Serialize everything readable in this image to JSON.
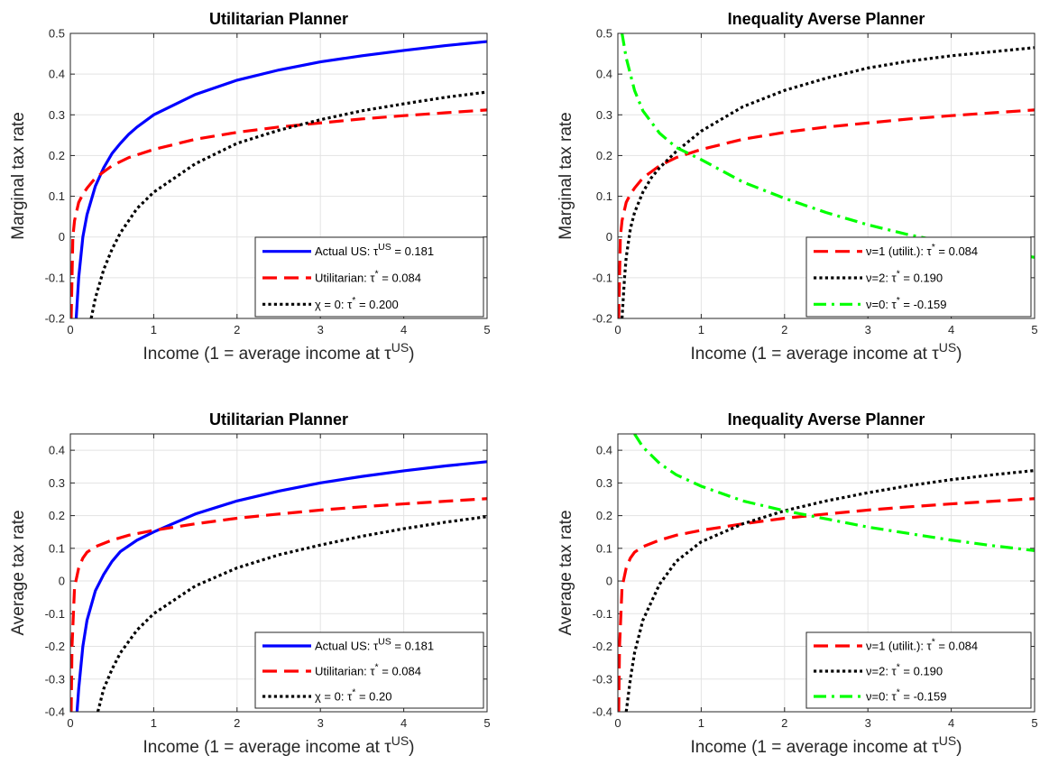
{
  "colors": {
    "blue": "#0000ff",
    "red": "#ff0000",
    "black": "#000000",
    "green": "#00ff00",
    "grid": "#e3e3e3",
    "axis": "#262626"
  },
  "chart_data": [
    {
      "type": "line",
      "title": "Utilitarian Planner",
      "xlabel": "Income (1 = average income at τ",
      "xlabel_sup": "US",
      "xlabel_end": ")",
      "ylabel": "Marginal tax rate",
      "xlim": [
        0,
        5
      ],
      "ylim": [
        -0.2,
        0.5
      ],
      "xticks": [
        "0",
        "1",
        "2",
        "3",
        "4",
        "5"
      ],
      "yticks": [
        "-0.2",
        "-0.1",
        "0",
        "0.1",
        "0.2",
        "0.3",
        "0.4",
        "0.5"
      ],
      "grid": true,
      "legend_position": "bottom-right",
      "series": [
        {
          "name": "Actual US: τ^US = 0.181",
          "legend_pre": "Actual US: τ",
          "legend_sup": "US",
          "legend_post": " = 0.181",
          "style": "solid",
          "color": "blue",
          "x": [
            0.07,
            0.1,
            0.15,
            0.2,
            0.3,
            0.4,
            0.5,
            0.6,
            0.7,
            0.8,
            1.0,
            1.5,
            2.0,
            2.5,
            3.0,
            3.5,
            4.0,
            4.5,
            5.0
          ],
          "y": [
            -0.2,
            -0.1,
            0.0,
            0.055,
            0.125,
            0.17,
            0.205,
            0.23,
            0.252,
            0.27,
            0.3,
            0.35,
            0.385,
            0.41,
            0.43,
            0.445,
            0.458,
            0.47,
            0.48
          ]
        },
        {
          "name": "Utilitarian: τ* = 0.084",
          "legend_pre": "Utilitarian: τ",
          "legend_sup": "*",
          "legend_post": " = 0.084",
          "style": "dashed",
          "color": "red",
          "x": [
            0.01,
            0.03,
            0.05,
            0.1,
            0.15,
            0.2,
            0.3,
            0.4,
            0.5,
            0.7,
            1.0,
            1.5,
            2.0,
            2.5,
            3.0,
            3.5,
            4.0,
            4.5,
            5.0
          ],
          "y": [
            -0.2,
            0.0,
            0.04,
            0.085,
            0.105,
            0.12,
            0.145,
            0.16,
            0.175,
            0.195,
            0.215,
            0.24,
            0.257,
            0.27,
            0.28,
            0.29,
            0.298,
            0.305,
            0.312
          ]
        },
        {
          "name": "χ = 0: τ* = 0.200",
          "legend_pre": "χ = 0: τ",
          "legend_sup": "*",
          "legend_post": " = 0.200",
          "style": "dotted",
          "color": "black",
          "x": [
            0.25,
            0.3,
            0.4,
            0.5,
            0.6,
            0.8,
            1.0,
            1.5,
            2.0,
            2.5,
            3.0,
            3.5,
            4.0,
            4.5,
            5.0
          ],
          "y": [
            -0.2,
            -0.15,
            -0.08,
            -0.03,
            0.01,
            0.07,
            0.11,
            0.18,
            0.23,
            0.262,
            0.288,
            0.31,
            0.327,
            0.343,
            0.356
          ]
        }
      ]
    },
    {
      "type": "line",
      "title": "Inequality Averse Planner",
      "xlabel": "Income (1 = average income at τ",
      "xlabel_sup": "US",
      "xlabel_end": ")",
      "ylabel": "Marginal tax rate",
      "xlim": [
        0,
        5
      ],
      "ylim": [
        -0.2,
        0.5
      ],
      "xticks": [
        "0",
        "1",
        "2",
        "3",
        "4",
        "5"
      ],
      "yticks": [
        "-0.2",
        "-0.1",
        "0",
        "0.1",
        "0.2",
        "0.3",
        "0.4",
        "0.5"
      ],
      "grid": true,
      "legend_position": "bottom-right",
      "series": [
        {
          "name": "ν=1 (utilit.): τ* = 0.084",
          "legend_pre": "ν=1 (utilit.): τ",
          "legend_sup": "*",
          "legend_post": " = 0.084",
          "style": "dashed",
          "color": "red",
          "x": [
            0.01,
            0.03,
            0.05,
            0.1,
            0.15,
            0.2,
            0.3,
            0.4,
            0.5,
            0.7,
            1.0,
            1.5,
            2.0,
            2.5,
            3.0,
            3.5,
            4.0,
            4.5,
            5.0
          ],
          "y": [
            -0.2,
            0.0,
            0.04,
            0.085,
            0.105,
            0.12,
            0.145,
            0.16,
            0.175,
            0.195,
            0.215,
            0.24,
            0.257,
            0.27,
            0.28,
            0.29,
            0.298,
            0.305,
            0.312
          ]
        },
        {
          "name": "ν=2: τ* = 0.190",
          "legend_pre": "ν=2: τ",
          "legend_sup": "*",
          "legend_post": " = 0.190",
          "style": "dotted",
          "color": "black",
          "x": [
            0.05,
            0.08,
            0.1,
            0.15,
            0.2,
            0.3,
            0.4,
            0.5,
            0.7,
            1.0,
            1.5,
            2.0,
            2.5,
            3.0,
            3.5,
            4.0,
            4.5,
            5.0
          ],
          "y": [
            -0.2,
            -0.1,
            -0.05,
            0.02,
            0.06,
            0.11,
            0.145,
            0.17,
            0.21,
            0.26,
            0.32,
            0.36,
            0.39,
            0.415,
            0.432,
            0.445,
            0.455,
            0.465
          ]
        },
        {
          "name": "ν=0: τ* = -0.159",
          "legend_pre": "ν=0: τ",
          "legend_sup": "*",
          "legend_post": " = -0.159",
          "style": "dashdot",
          "color": "green",
          "x": [
            0.05,
            0.1,
            0.2,
            0.3,
            0.5,
            0.7,
            1.0,
            1.5,
            2.0,
            2.5,
            3.0,
            3.5,
            4.0,
            4.5,
            5.0
          ],
          "y": [
            0.5,
            0.44,
            0.36,
            0.31,
            0.255,
            0.22,
            0.19,
            0.135,
            0.095,
            0.06,
            0.03,
            0.005,
            -0.015,
            -0.033,
            -0.05
          ]
        }
      ]
    },
    {
      "type": "line",
      "title": "Utilitarian Planner",
      "xlabel": "Income (1 = average income at τ",
      "xlabel_sup": "US",
      "xlabel_end": ")",
      "ylabel": "Average tax rate",
      "xlim": [
        0,
        5
      ],
      "ylim": [
        -0.4,
        0.45
      ],
      "xticks": [
        "0",
        "1",
        "2",
        "3",
        "4",
        "5"
      ],
      "yticks": [
        "-0.4",
        "-0.3",
        "-0.2",
        "-0.1",
        "0",
        "0.1",
        "0.2",
        "0.3",
        "0.4"
      ],
      "grid": true,
      "legend_position": "bottom-right",
      "series": [
        {
          "name": "Actual US: τ^US = 0.181",
          "legend_pre": "Actual US: τ",
          "legend_sup": "US",
          "legend_post": " = 0.181",
          "style": "solid",
          "color": "blue",
          "x": [
            0.08,
            0.1,
            0.15,
            0.2,
            0.3,
            0.4,
            0.5,
            0.6,
            0.8,
            1.0,
            1.5,
            2.0,
            2.5,
            3.0,
            3.5,
            4.0,
            4.5,
            5.0
          ],
          "y": [
            -0.4,
            -0.33,
            -0.2,
            -0.12,
            -0.03,
            0.02,
            0.06,
            0.09,
            0.125,
            0.15,
            0.205,
            0.245,
            0.275,
            0.3,
            0.32,
            0.337,
            0.352,
            0.365
          ]
        },
        {
          "name": "Utilitarian: τ* = 0.084",
          "legend_pre": "Utilitarian: τ",
          "legend_sup": "*",
          "legend_post": " = 0.084",
          "style": "dashed",
          "color": "red",
          "x": [
            0.01,
            0.02,
            0.05,
            0.1,
            0.15,
            0.2,
            0.3,
            0.5,
            0.7,
            1.0,
            1.5,
            2.0,
            2.5,
            3.0,
            3.5,
            4.0,
            4.5,
            5.0
          ],
          "y": [
            -0.4,
            -0.2,
            -0.02,
            0.04,
            0.07,
            0.088,
            0.105,
            0.125,
            0.14,
            0.155,
            0.175,
            0.192,
            0.205,
            0.217,
            0.227,
            0.236,
            0.244,
            0.252
          ]
        },
        {
          "name": "χ = 0: τ* = 0.20",
          "legend_pre": "χ = 0: τ",
          "legend_sup": "*",
          "legend_post": " = 0.20",
          "style": "dotted",
          "color": "black",
          "x": [
            0.33,
            0.4,
            0.5,
            0.6,
            0.8,
            1.0,
            1.5,
            2.0,
            2.5,
            3.0,
            3.5,
            4.0,
            4.5,
            5.0
          ],
          "y": [
            -0.4,
            -0.33,
            -0.27,
            -0.22,
            -0.15,
            -0.1,
            -0.015,
            0.04,
            0.08,
            0.11,
            0.137,
            0.16,
            0.18,
            0.197
          ]
        }
      ]
    },
    {
      "type": "line",
      "title": "Inequality Averse Planner",
      "xlabel": "Income (1 = average income at τ",
      "xlabel_sup": "US",
      "xlabel_end": ")",
      "ylabel": "Average tax rate",
      "xlim": [
        0,
        5
      ],
      "ylim": [
        -0.4,
        0.45
      ],
      "xticks": [
        "0",
        "1",
        "2",
        "3",
        "4",
        "5"
      ],
      "yticks": [
        "-0.4",
        "-0.3",
        "-0.2",
        "-0.1",
        "0",
        "0.1",
        "0.2",
        "0.3",
        "0.4"
      ],
      "grid": true,
      "legend_position": "bottom-right",
      "series": [
        {
          "name": "ν=1 (utilit.): τ* = 0.084",
          "legend_pre": "ν=1 (utilit.): τ",
          "legend_sup": "*",
          "legend_post": " = 0.084",
          "style": "dashed",
          "color": "red",
          "x": [
            0.01,
            0.02,
            0.05,
            0.1,
            0.15,
            0.2,
            0.3,
            0.5,
            0.7,
            1.0,
            1.5,
            2.0,
            2.5,
            3.0,
            3.5,
            4.0,
            4.5,
            5.0
          ],
          "y": [
            -0.4,
            -0.2,
            -0.02,
            0.04,
            0.07,
            0.088,
            0.105,
            0.125,
            0.14,
            0.155,
            0.175,
            0.192,
            0.205,
            0.217,
            0.227,
            0.236,
            0.244,
            0.252
          ]
        },
        {
          "name": "ν=2: τ* = 0.190",
          "legend_pre": "ν=2: τ",
          "legend_sup": "*",
          "legend_post": " = 0.190",
          "style": "dotted",
          "color": "black",
          "x": [
            0.1,
            0.15,
            0.2,
            0.3,
            0.5,
            0.7,
            1.0,
            1.5,
            2.0,
            2.5,
            3.0,
            3.5,
            4.0,
            4.5,
            5.0
          ],
          "y": [
            -0.4,
            -0.3,
            -0.22,
            -0.12,
            -0.01,
            0.06,
            0.12,
            0.175,
            0.215,
            0.245,
            0.27,
            0.292,
            0.31,
            0.325,
            0.338
          ]
        },
        {
          "name": "ν=0: τ* = -0.159",
          "legend_pre": "ν=0: τ",
          "legend_sup": "*",
          "legend_post": " = -0.159",
          "style": "dashdot",
          "color": "green",
          "x": [
            0.2,
            0.3,
            0.5,
            0.7,
            1.0,
            1.5,
            2.0,
            2.5,
            3.0,
            3.5,
            4.0,
            4.5,
            5.0
          ],
          "y": [
            0.45,
            0.41,
            0.36,
            0.325,
            0.29,
            0.245,
            0.215,
            0.19,
            0.165,
            0.145,
            0.125,
            0.108,
            0.093
          ]
        }
      ]
    }
  ]
}
